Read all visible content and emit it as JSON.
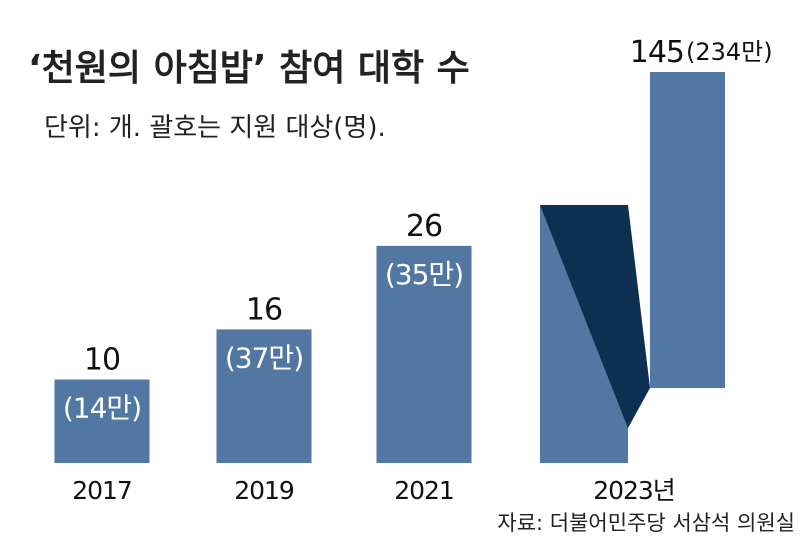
{
  "title": "‘천원의 아침밥’ 참여  대학 수",
  "subtitle": "단위: 개.  괄호는 지원 대상(명).",
  "source": "자료:  더불어민주당 서삼석 의원실",
  "colors": {
    "bar": "#5377a3",
    "bar_dark": "#0c2f52",
    "text": "#111111",
    "inbar_text": "#ffffff"
  },
  "chart_data": {
    "type": "bar",
    "categories": [
      "2017",
      "2019",
      "2021",
      "2023년"
    ],
    "series": [
      {
        "values": [
          10,
          16,
          26,
          145
        ]
      }
    ],
    "secondary_labels": [
      "(14만)",
      "(37만)",
      "(35만)",
      "(234만)"
    ],
    "title": "‘천원의 아침밥’ 참여  대학 수",
    "subtitle": "단위: 개.  괄호는 지원 대상(명).",
    "xlabel": "",
    "ylabel": "",
    "axis_break": true,
    "grid": false
  }
}
